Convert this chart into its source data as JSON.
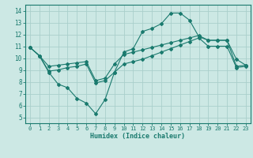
{
  "bg_color": "#cce8e4",
  "grid_color": "#aacfcb",
  "line_color": "#1a7a6e",
  "xlabel": "Humidex (Indice chaleur)",
  "xlim": [
    -0.5,
    23.5
  ],
  "ylim": [
    4.5,
    14.5
  ],
  "xticks": [
    0,
    1,
    2,
    3,
    4,
    5,
    6,
    7,
    8,
    9,
    10,
    11,
    12,
    13,
    14,
    15,
    16,
    17,
    18,
    19,
    20,
    21,
    22,
    23
  ],
  "yticks": [
    5,
    6,
    7,
    8,
    9,
    10,
    11,
    12,
    13,
    14
  ],
  "line1_x": [
    0,
    1,
    2,
    3,
    4,
    5,
    6,
    7,
    8,
    9,
    10,
    11,
    12,
    13,
    14,
    15,
    16,
    17,
    18,
    19,
    20,
    21,
    22,
    23
  ],
  "line1_y": [
    10.9,
    10.2,
    8.8,
    7.8,
    7.5,
    6.6,
    6.2,
    5.3,
    6.5,
    8.8,
    10.5,
    10.8,
    12.25,
    12.5,
    12.9,
    13.8,
    13.8,
    13.2,
    11.8,
    11.5,
    11.5,
    11.5,
    9.9,
    9.4
  ],
  "line2_x": [
    0,
    1,
    2,
    3,
    4,
    5,
    6,
    7,
    8,
    9,
    10,
    11,
    12,
    13,
    14,
    15,
    16,
    17,
    18,
    19,
    20,
    21,
    22,
    23
  ],
  "line2_y": [
    10.9,
    10.2,
    9.3,
    9.4,
    9.5,
    9.6,
    9.7,
    8.1,
    8.3,
    9.5,
    10.3,
    10.5,
    10.7,
    10.9,
    11.1,
    11.3,
    11.5,
    11.7,
    11.9,
    11.5,
    11.5,
    11.5,
    9.3,
    9.4
  ],
  "line3_x": [
    0,
    1,
    2,
    3,
    4,
    5,
    6,
    7,
    8,
    9,
    10,
    11,
    12,
    13,
    14,
    15,
    16,
    17,
    18,
    19,
    20,
    21,
    22,
    23
  ],
  "line3_y": [
    10.9,
    10.2,
    8.9,
    9.0,
    9.2,
    9.3,
    9.5,
    7.9,
    8.1,
    8.8,
    9.5,
    9.7,
    9.9,
    10.2,
    10.5,
    10.8,
    11.1,
    11.4,
    11.7,
    11.0,
    11.0,
    11.0,
    9.2,
    9.3
  ],
  "title_fontsize": 7,
  "label_fontsize": 6,
  "tick_fontsize": 5
}
